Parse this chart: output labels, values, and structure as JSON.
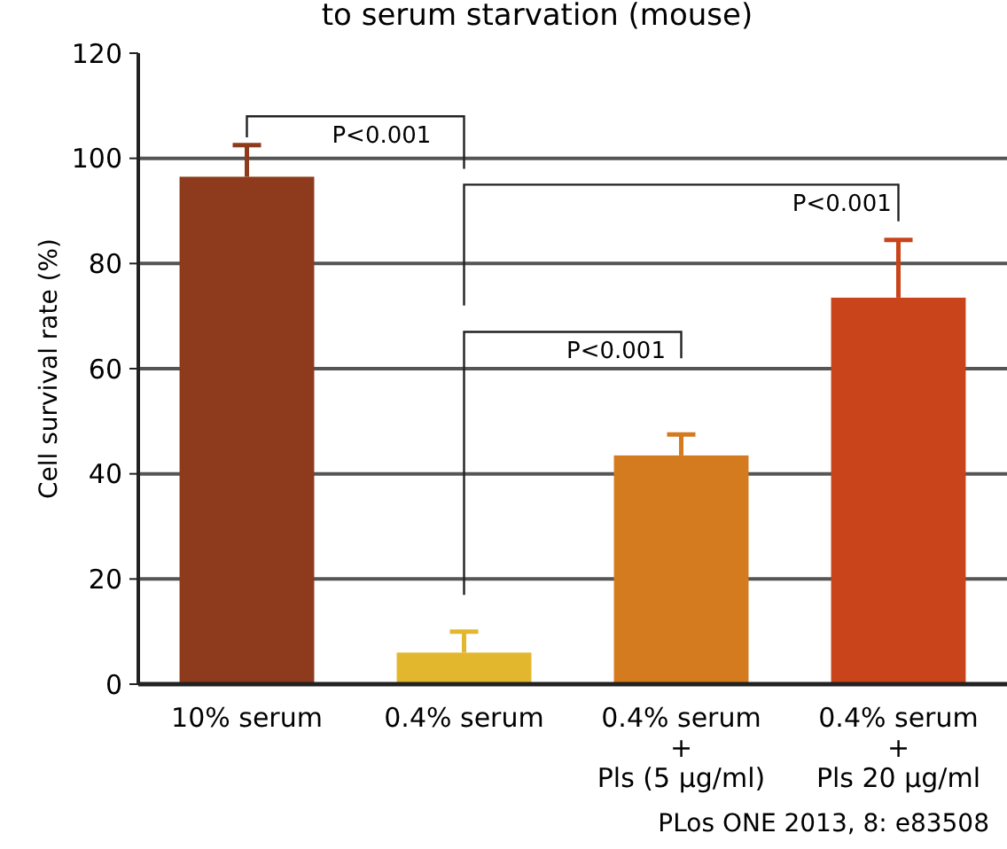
{
  "chart_data": {
    "type": "bar",
    "title": "to serum starvation (mouse)",
    "ylabel": "Cell survival rate (%)",
    "categories": [
      "10% serum",
      "0.4% serum",
      "0.4% serum\n+\nPls (5 µg/ml)",
      "0.4% serum\n+\nPls 20 µg/ml"
    ],
    "values": [
      96.5,
      6,
      43.5,
      73.5
    ],
    "colors": [
      "#8e3a1c",
      "#e2b72e",
      "#d47a1f",
      "#c9441a"
    ],
    "errors": [
      [
        96.5,
        102.5
      ],
      [
        6,
        10
      ],
      [
        43.5,
        47.5
      ],
      [
        73.5,
        84.5
      ]
    ],
    "ylim": [
      0,
      120
    ],
    "yticks": [
      0,
      20,
      40,
      60,
      80,
      100,
      120
    ],
    "grid": "y",
    "annotations": [
      "P<0.001",
      "P<0.001",
      "P<0.001",
      "PLos ONE 2013, 8: e83508"
    ]
  }
}
